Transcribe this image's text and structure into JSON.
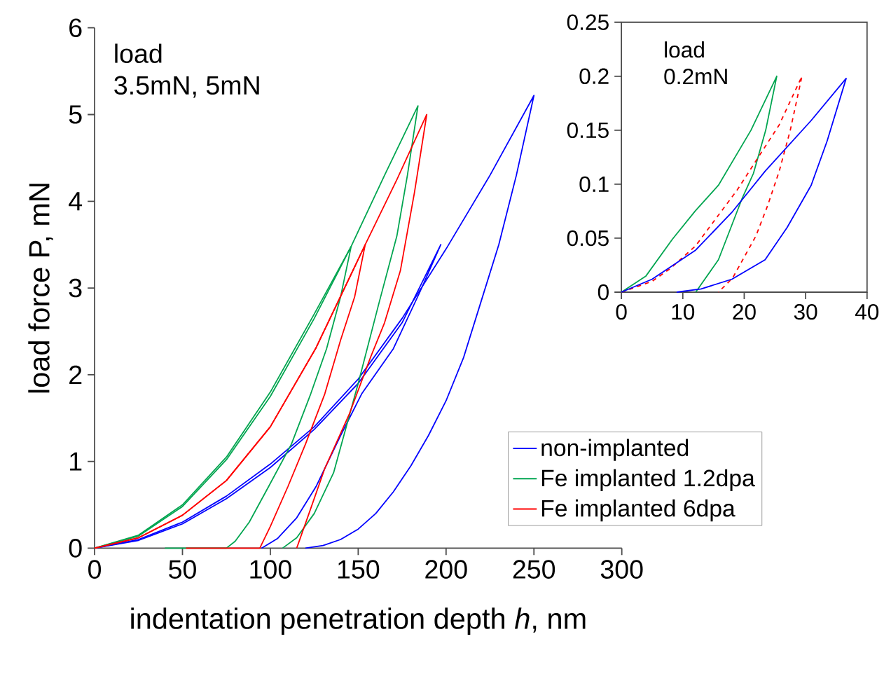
{
  "chart_data": [
    {
      "type": "line",
      "xlabel": "indentation penetration depth *h*, nm",
      "ylabel": "load force P, mN",
      "xlim": [
        0,
        300
      ],
      "ylim": [
        0,
        6
      ],
      "xticks": [
        0,
        50,
        100,
        150,
        200,
        250,
        300
      ],
      "yticks": [
        0,
        1,
        2,
        3,
        4,
        5,
        6
      ],
      "legend": "bottom right",
      "annotations": [
        "load",
        "3.5mN, 5mN"
      ],
      "series": [
        {
          "name": "non-implanted",
          "color": "#0000ff",
          "x": [
            0,
            25,
            50,
            75,
            100,
            125,
            150,
            175,
            200,
            225,
            250,
            240,
            230,
            220,
            210,
            200,
            190,
            180,
            170,
            160,
            150,
            140,
            130,
            120
          ],
          "values": [
            0,
            0.1,
            0.3,
            0.6,
            0.97,
            1.4,
            1.95,
            2.65,
            3.45,
            4.3,
            5.22,
            4.3,
            3.5,
            2.85,
            2.2,
            1.7,
            1.3,
            0.95,
            0.65,
            0.4,
            0.22,
            0.1,
            0.03,
            0
          ]
        },
        {
          "color": "#0000ff",
          "x": [
            0,
            25,
            50,
            75,
            100,
            125,
            150,
            175,
            197,
            185,
            170,
            152,
            140,
            126,
            115,
            104,
            95
          ],
          "values": [
            0,
            0.09,
            0.28,
            0.57,
            0.93,
            1.37,
            1.9,
            2.6,
            3.5,
            2.95,
            2.3,
            1.78,
            1.3,
            0.71,
            0.35,
            0.11,
            0
          ]
        },
        {
          "name": "Fe implanted 1.2dpa",
          "color": "#00a550",
          "x": [
            0,
            25,
            50,
            75,
            100,
            125,
            146,
            165,
            184,
            178,
            172,
            162,
            150,
            136,
            125,
            115,
            107
          ],
          "values": [
            0,
            0.15,
            0.5,
            1.05,
            1.8,
            2.7,
            3.48,
            4.3,
            5.1,
            4.3,
            3.6,
            2.84,
            1.9,
            0.87,
            0.4,
            0.12,
            0
          ]
        },
        {
          "color": "#00a550",
          "x": [
            0,
            25,
            50,
            75,
            100,
            125,
            146,
            140,
            132,
            123,
            112,
            99,
            88,
            80,
            75,
            40
          ],
          "values": [
            0,
            0.14,
            0.48,
            1.02,
            1.75,
            2.65,
            3.48,
            2.9,
            2.3,
            1.78,
            1.2,
            0.71,
            0.3,
            0.08,
            0,
            0
          ]
        },
        {
          "name": "Fe implanted 6dpa",
          "color": "#ff0000",
          "x": [
            0,
            25,
            50,
            75,
            100,
            126,
            154,
            172,
            189,
            182,
            174,
            165,
            157,
            145,
            131,
            122,
            115
          ],
          "values": [
            0,
            0.12,
            0.38,
            0.78,
            1.4,
            2.31,
            3.5,
            4.25,
            5.0,
            4.1,
            3.2,
            2.6,
            2.2,
            1.55,
            0.92,
            0.4,
            0
          ]
        },
        {
          "color": "#ff0000",
          "x": [
            0,
            25,
            50,
            75,
            100,
            126,
            154,
            148,
            140,
            131,
            120,
            110,
            100,
            94,
            52
          ],
          "values": [
            0,
            0.12,
            0.38,
            0.78,
            1.4,
            2.31,
            3.5,
            2.9,
            2.4,
            1.78,
            1.2,
            0.71,
            0.25,
            0,
            0
          ]
        }
      ]
    },
    {
      "type": "line",
      "xlim": [
        0,
        40
      ],
      "ylim": [
        0,
        0.25
      ],
      "xticks": [
        0,
        10,
        20,
        30,
        40
      ],
      "yticks": [
        0,
        0.05,
        0.1,
        0.15,
        0.2,
        0.25
      ],
      "annotations": [
        "load",
        "0.2mN"
      ],
      "series": [
        {
          "color": "#00a550",
          "x": [
            0,
            4,
            8.3,
            12,
            15.8,
            21.1,
            25.3,
            23.5,
            21.5,
            19.6,
            17.5,
            15.8,
            12.1
          ],
          "values": [
            0,
            0.015,
            0.049,
            0.075,
            0.099,
            0.15,
            0.2,
            0.15,
            0.11,
            0.086,
            0.055,
            0.03,
            0
          ]
        },
        {
          "color": "#ff0000",
          "line_style": "dashed",
          "x": [
            0,
            5,
            8,
            12.1,
            18.9,
            25.7,
            29.4,
            27.5,
            25.7,
            23.8,
            21.9,
            18.1,
            15.8
          ],
          "values": [
            0,
            0.01,
            0.022,
            0.043,
            0.095,
            0.155,
            0.2,
            0.15,
            0.112,
            0.08,
            0.052,
            0.013,
            0
          ]
        },
        {
          "color": "#0000ff",
          "x": [
            0,
            5,
            12.1,
            18,
            23.4,
            30.9,
            36.6,
            33.5,
            30.9,
            27,
            23.4,
            18,
            13,
            9
          ],
          "values": [
            0,
            0.012,
            0.039,
            0.074,
            0.112,
            0.159,
            0.198,
            0.14,
            0.099,
            0.06,
            0.03,
            0.012,
            0.003,
            0
          ]
        }
      ]
    }
  ]
}
